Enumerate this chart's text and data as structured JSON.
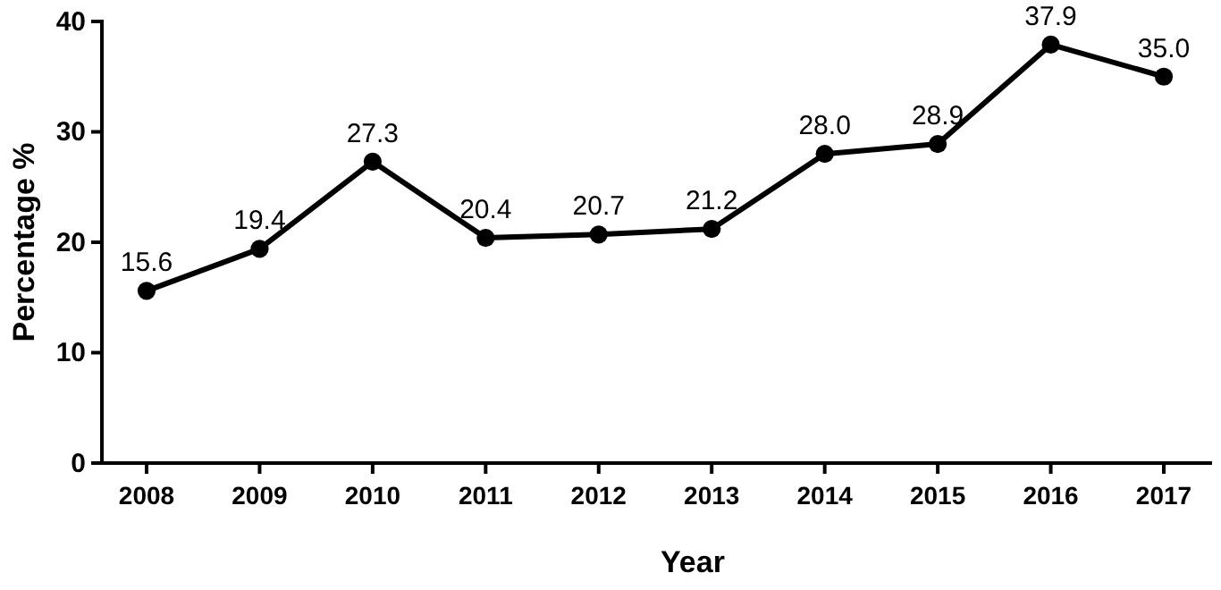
{
  "chart_data": {
    "type": "line",
    "xlabel": "Year",
    "ylabel": "Percentage %",
    "categories": [
      "2008",
      "2009",
      "2010",
      "2011",
      "2012",
      "2013",
      "2014",
      "2015",
      "2016",
      "2017"
    ],
    "series": [
      {
        "color": "#000000",
        "values": [
          15.6,
          19.4,
          27.3,
          20.4,
          20.7,
          21.2,
          28.0,
          28.9,
          37.9,
          35.0
        ],
        "value_labels": [
          "15.6",
          "19.4",
          "27.3",
          "20.4",
          "20.7",
          "21.2",
          "28.0",
          "28.9",
          "37.9",
          "35.0"
        ]
      }
    ],
    "ylim": [
      0,
      40
    ],
    "yticks": [
      0,
      10,
      20,
      30,
      40
    ],
    "grid": false,
    "marker": "circle",
    "line_style": "solid"
  }
}
